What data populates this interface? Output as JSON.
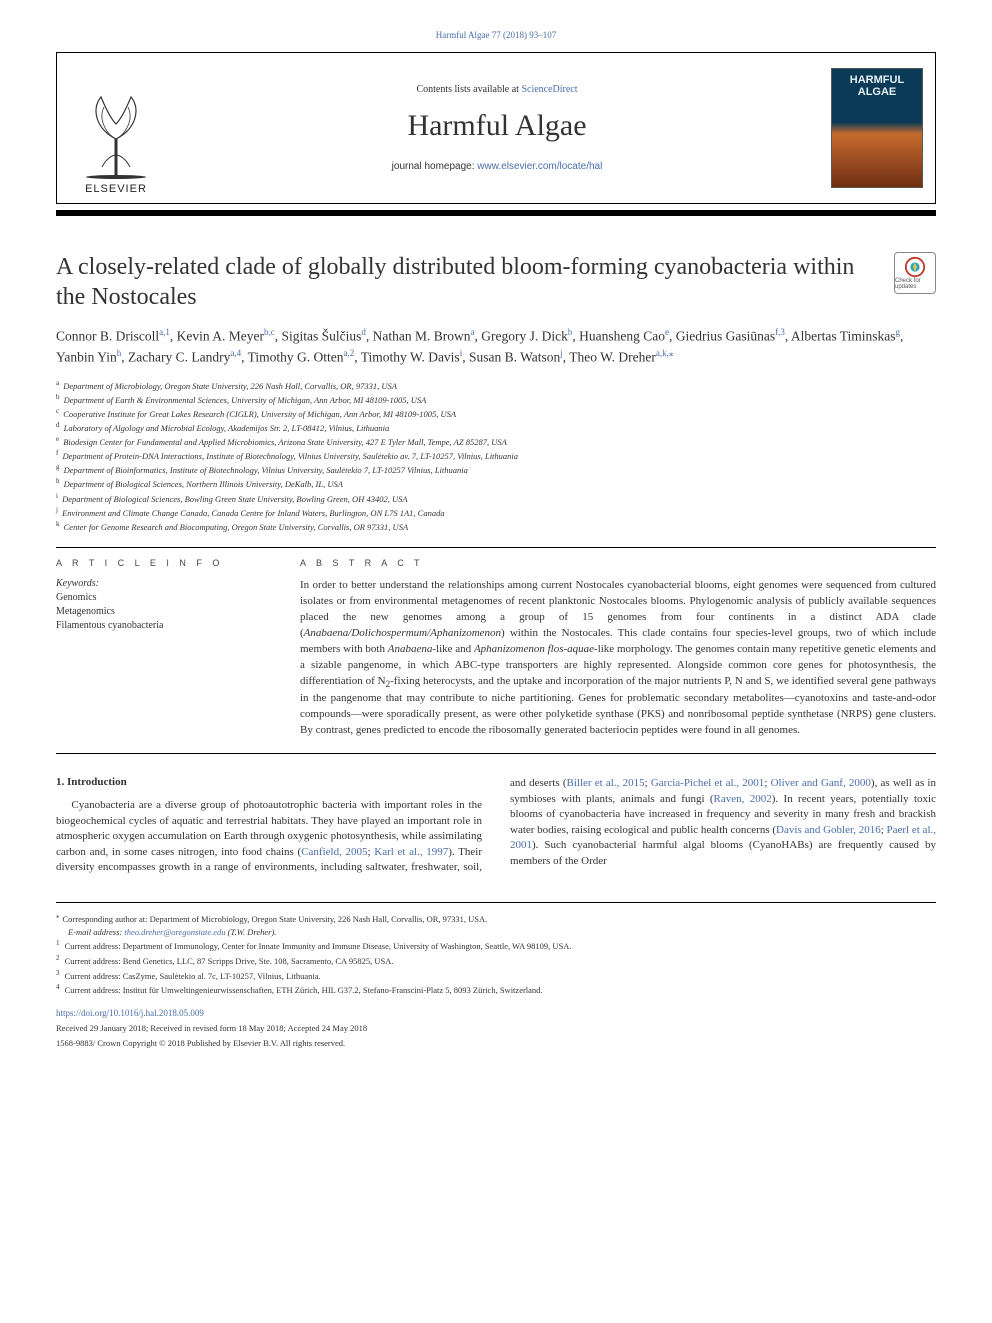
{
  "page_header": {
    "citation": "Harmful Algae 77 (2018) 93–107",
    "link_color": "#4a6ea9"
  },
  "banner": {
    "contents_prefix": "Contents lists available at ",
    "contents_link_text": "ScienceDirect",
    "journal_title": "Harmful Algae",
    "homepage_prefix": "journal homepage: ",
    "homepage_url": "www.elsevier.com/locate/hal",
    "publisher_label": "ELSEVIER",
    "cover_text_line1": "HARMFUL",
    "cover_text_line2": "ALGAE"
  },
  "article": {
    "title": "A closely-related clade of globally distributed bloom-forming cyanobacteria within the Nostocales",
    "update_badge_label": "Check for updates"
  },
  "authors_html": "Connor B. Driscoll<sup><a>a</a>,<a>1</a></sup>, Kevin A. Meyer<sup><a>b</a>,<a>c</a></sup>, Sigitas Šulčius<sup><a>d</a></sup>, Nathan M. Brown<sup><a>a</a></sup>, Gregory J. Dick<sup><a>b</a></sup>, Huansheng Cao<sup><a>e</a></sup>, Giedrius Gasiūnas<sup><a>f</a>,<a>3</a></sup>, Albertas Timinskas<sup><a>g</a></sup>, Yanbin Yin<sup><a>h</a></sup>, Zachary C. Landry<sup><a>a</a>,<a>4</a></sup>, Timothy G. Otten<sup><a>a</a>,<a>2</a></sup>, Timothy W. Davis<sup><a>i</a></sup>, Susan B. Watson<sup><a>j</a></sup>, Theo W. Dreher<sup><a>a</a>,<a>k</a>,<a>⁎</a></sup>",
  "affiliations": [
    {
      "key": "a",
      "text": "Department of Microbiology, Oregon State University, 226 Nash Hall, Corvallis, OR, 97331, USA"
    },
    {
      "key": "b",
      "text": "Department of Earth & Environmental Sciences, University of Michigan, Ann Arbor, MI 48109-1005, USA"
    },
    {
      "key": "c",
      "text": "Cooperative Institute for Great Lakes Research (CIGLR), University of Michigan, Ann Arbor, MI 48109-1005, USA"
    },
    {
      "key": "d",
      "text": "Laboratory of Algology and Microbial Ecology, Akademijos Str. 2, LT-08412, Vilnius, Lithuania"
    },
    {
      "key": "e",
      "text": "Biodesign Center for Fundamental and Applied Microbiomics, Arizona State University, 427 E Tyler Mall, Tempe, AZ 85287, USA"
    },
    {
      "key": "f",
      "text": "Department of Protein-DNA Interactions, Institute of Biotechnology, Vilnius University, Saulėtekio av. 7, LT-10257, Vilnius, Lithuania"
    },
    {
      "key": "g",
      "text": "Department of Bioinformatics, Institute of Biotechnology, Vilnius University, Saulėtekio 7, LT-10257 Vilnius, Lithuania"
    },
    {
      "key": "h",
      "text": "Department of Biological Sciences, Northern Illinois University, DeKalb, IL, USA"
    },
    {
      "key": "i",
      "text": "Department of Biological Sciences, Bowling Green State University, Bowling Green, OH 43402, USA"
    },
    {
      "key": "j",
      "text": "Environment and Climate Change Canada, Canada Centre for Inland Waters, Burlington, ON L7S 1A1, Canada"
    },
    {
      "key": "k",
      "text": "Center for Genome Research and Biocomputing, Oregon State University, Corvallis, OR 97331, USA"
    }
  ],
  "article_info": {
    "label": "A R T I C L E  I N F O",
    "keywords_label": "Keywords:",
    "keywords": [
      "Genomics",
      "Metagenomics",
      "Filamentous cyanobacteria"
    ]
  },
  "abstract": {
    "label": "A B S T R A C T",
    "text_html": "In order to better understand the relationships among current Nostocales cyanobacterial blooms, eight genomes were sequenced from cultured isolates or from environmental metagenomes of recent planktonic Nostocales blooms. Phylogenomic analysis of publicly available sequences placed the new genomes among a group of 15 genomes from four continents in a distinct ADA clade (<em>Anabaena/Dolichospermum/Aphanizomenon</em>) within the Nostocales. This clade contains four species-level groups, two of which include members with both <em>Anabaena</em>-like and <em>Aphanizomenon flos-aquae</em>-like morphology. The genomes contain many repetitive genetic elements and a sizable pangenome, in which ABC-type transporters are highly represented. Alongside common core genes for photosynthesis, the differentiation of N<sub>2</sub>-fixing heterocysts, and the uptake and incorporation of the major nutrients P, N and S, we identified several gene pathways in the pangenome that may contribute to niche partitioning. Genes for problematic secondary metabolites—cyanotoxins and taste-and-odor compounds—were sporadically present, as were other polyketide synthase (PKS) and nonribosomal peptide synthetase (NRPS) gene clusters. By contrast, genes predicted to encode the ribosomally generated bacteriocin peptides were found in all genomes."
  },
  "introduction": {
    "heading": "1. Introduction",
    "para_html": "Cyanobacteria are a diverse group of photoautotrophic bacteria with important roles in the biogeochemical cycles of aquatic and terrestrial habitats. They have played an important role in atmospheric oxygen accumulation on Earth through oxygenic photosynthesis, while assimilating carbon and, in some cases nitrogen, into food chains (<a class=\"ref-link\">Canfield, 2005</a>; <a class=\"ref-link\">Karl et al., 1997</a>). Their diversity encompasses growth in a range of environments, including saltwater, freshwater, soil, and deserts (<a class=\"ref-link\">Biller et al., 2015</a>; <a class=\"ref-link\">Garcia-Pichel et al., 2001</a>; <a class=\"ref-link\">Oliver and Ganf, 2000</a>), as well as in symbioses with plants, animals and fungi (<a class=\"ref-link\">Raven, 2002</a>). In recent years, potentially toxic blooms of cyanobacteria have increased in frequency and severity in many fresh and brackish water bodies, raising ecological and public health concerns (<a class=\"ref-link\">Davis and Gobler, 2016</a>; <a class=\"ref-link\">Paerl et al., 2001</a>). Such cyanobacterial harmful algal blooms (CyanoHABs) are frequently caused by members of the Order"
  },
  "footnotes": {
    "corresponding": "Corresponding author at: Department of Microbiology, Oregon State University, 226 Nash Hall, Corvallis, OR, 97331, USA.",
    "email_label": "E-mail address: ",
    "email": "theo.dreher@oregonstate.edu",
    "email_suffix": " (T.W. Dreher).",
    "notes": [
      {
        "key": "1",
        "text": "Current address: Department of Immunology, Center for Innate Immunity and Immune Disease, University of Washington, Seattle, WA 98109, USA."
      },
      {
        "key": "2",
        "text": "Current address: Bend Genetics, LLC, 87 Scripps Drive, Ste. 108, Sacramento, CA 95825, USA."
      },
      {
        "key": "3",
        "text": "Current address: CasZyme, Saulėtekio al. 7c, LT-10257, Vilnius, Lithuania."
      },
      {
        "key": "4",
        "text": "Current address: Institut für Umweltingenieurwissenschaften, ETH Zürich, HIL G37.2, Stefano-Franscini-Platz 5, 8093 Zürich, Switzerland."
      }
    ],
    "doi": "https://doi.org/10.1016/j.hal.2018.05.009",
    "history": "Received 29 January 2018; Received in revised form 18 May 2018; Accepted 24 May 2018",
    "copyright": "1568-9883/ Crown Copyright © 2018 Published by Elsevier B.V. All rights reserved."
  },
  "colors": {
    "link": "#4a6ea9",
    "text": "#333333",
    "rule": "#000000"
  },
  "typography": {
    "body_font": "Georgia, 'Times New Roman', serif",
    "journal_title_size_pt": 30,
    "article_title_size_pt": 24,
    "body_size_pt": 11,
    "affil_size_pt": 8.5
  }
}
